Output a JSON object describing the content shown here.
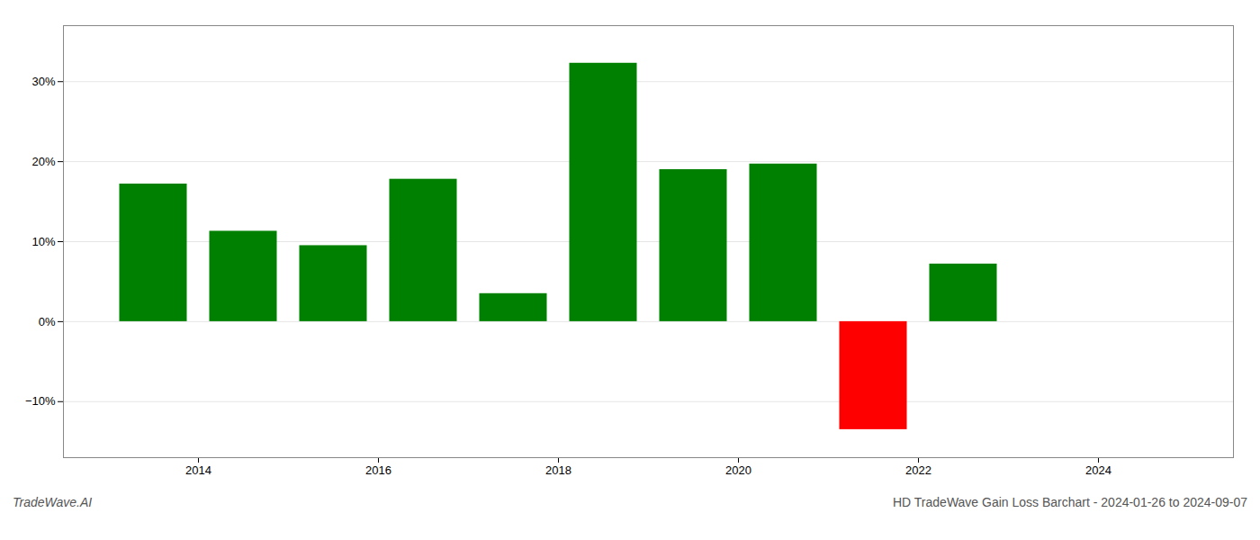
{
  "chart_data": {
    "type": "bar",
    "x": [
      2013.5,
      2014.5,
      2015.5,
      2016.5,
      2017.5,
      2018.5,
      2019.5,
      2020.5,
      2021.5,
      2022.5
    ],
    "values": [
      17.2,
      11.3,
      9.5,
      17.8,
      3.5,
      32.3,
      19.0,
      19.7,
      -13.5,
      7.2
    ],
    "colors": [
      "#008000",
      "#008000",
      "#008000",
      "#008000",
      "#008000",
      "#008000",
      "#008000",
      "#008000",
      "#ff0000",
      "#008000"
    ],
    "xlim": [
      2012.5,
      2025.5
    ],
    "xticks": [
      2014,
      2016,
      2018,
      2020,
      2022,
      2024
    ],
    "ylim": [
      -17,
      37
    ],
    "yticks": [
      {
        "value": -10,
        "label": "−10%"
      },
      {
        "value": 0,
        "label": "0%"
      },
      {
        "value": 10,
        "label": "10%"
      },
      {
        "value": 20,
        "label": "20%"
      },
      {
        "value": 30,
        "label": "30%"
      }
    ],
    "grid": true,
    "annotations": [
      "TradeWave.AI",
      "HD TradeWave Gain Loss Barchart - 2024-01-26 to 2024-09-07"
    ]
  }
}
